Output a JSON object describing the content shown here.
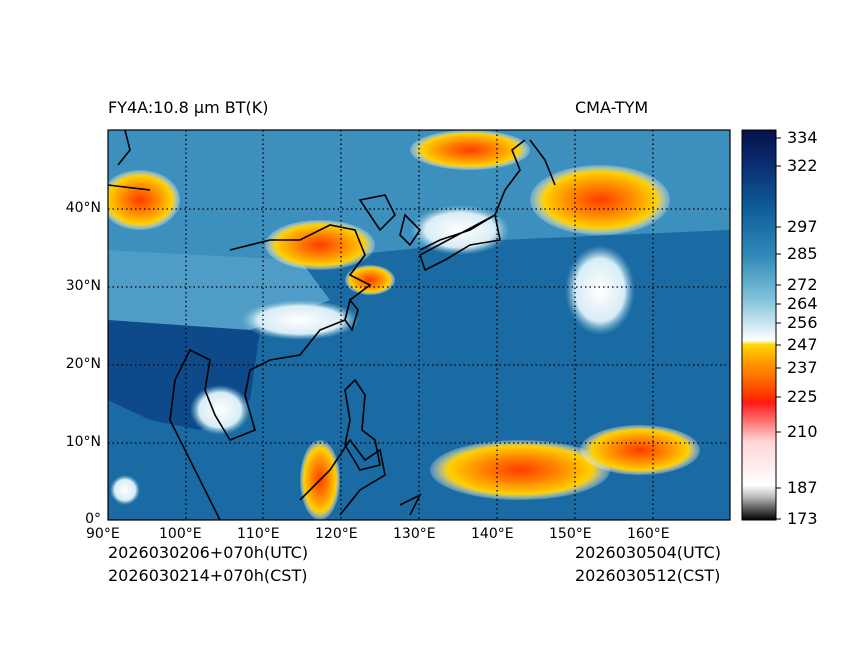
{
  "header": {
    "left_title": "FY4A:10.8 μm BT(K)",
    "right_title": "CMA-TYM"
  },
  "map": {
    "lon_labels": [
      "90°E",
      "100°E",
      "110°E",
      "120°E",
      "130°E",
      "140°E",
      "150°E",
      "160°E"
    ],
    "lat_labels": [
      "0°",
      "10°N",
      "20°N",
      "30°N",
      "40°N"
    ],
    "lon_range": [
      90,
      170
    ],
    "lat_range": [
      0,
      50
    ]
  },
  "colorbar": {
    "tick_labels": [
      "334",
      "322",
      "297",
      "285",
      "272",
      "264",
      "256",
      "247",
      "237",
      "225",
      "210",
      "187",
      "173"
    ]
  },
  "footer": {
    "init_utc": "2026030206+070h(UTC)",
    "init_cst": "2026030214+070h(CST)",
    "valid_utc": "2026030504(UTC)",
    "valid_cst": "2026030512(CST)"
  }
}
